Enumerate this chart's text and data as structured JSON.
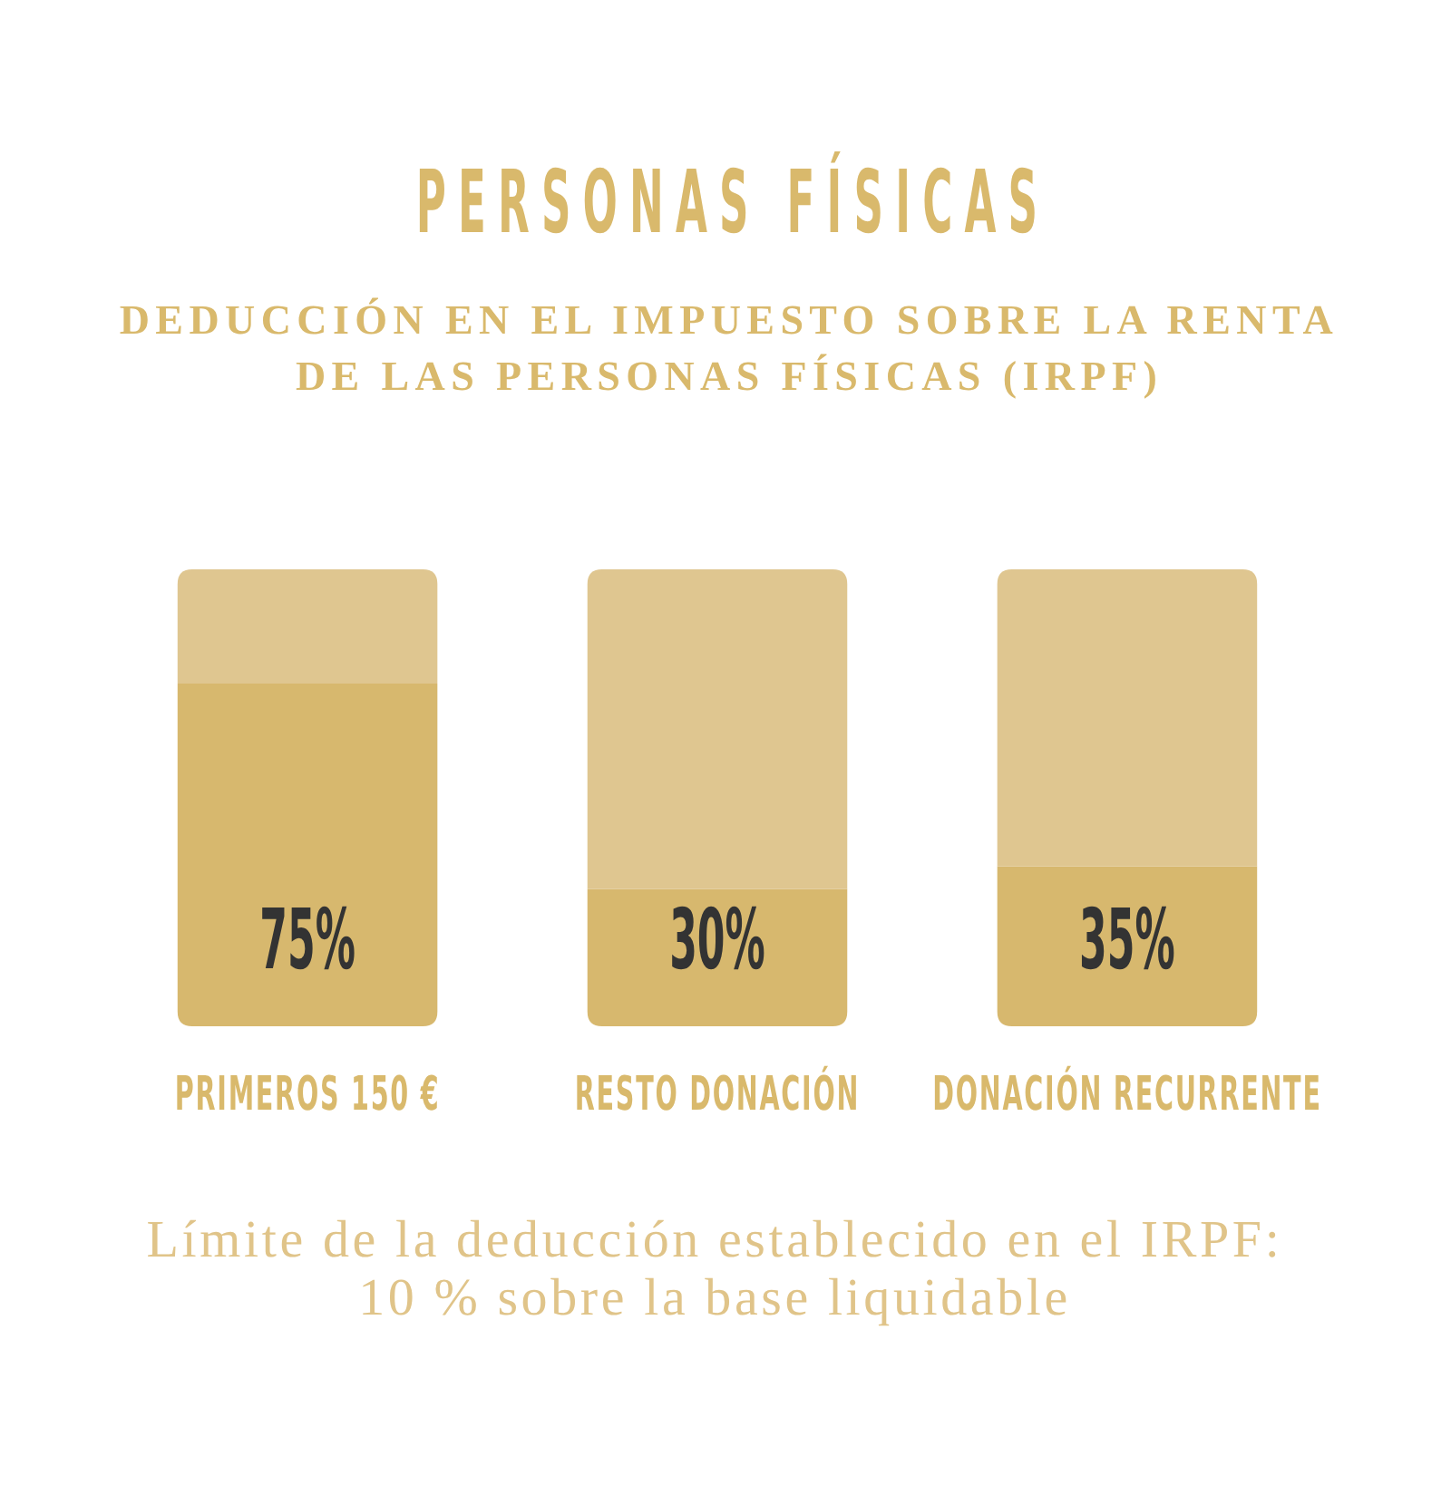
{
  "chart_data": {
    "type": "bar",
    "title": "PERSONAS FÍSICAS",
    "subtitle": "DEDUCCIÓN EN EL IMPUESTO SOBRE LA RENTA DE LAS PERSONAS FÍSICAS (IRPF)",
    "categories": [
      "PRIMEROS 150 €",
      "RESTO DONACIÓN",
      "DONACIÓN RECURRENTE"
    ],
    "series": [
      {
        "color": "#d7b86e",
        "values": [
          75,
          30,
          35
        ],
        "value_labels": [
          "75%",
          "30%",
          "35%"
        ]
      },
      {
        "color": "#dfc690",
        "values": [
          25,
          70,
          65
        ]
      }
    ],
    "stacked": true,
    "ylim": [
      0,
      100
    ],
    "tick_labels": "x",
    "annotations": [
      "Límite de la deducción establecido en el IRPF: 10 % sobre la base liquidable"
    ]
  }
}
